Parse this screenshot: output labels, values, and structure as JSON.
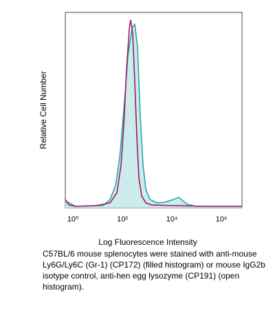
{
  "chart_data": {
    "type": "line",
    "xscale": "log",
    "x_label": "Log Fluorescence Intensity",
    "y_label": "Relative Cell Number",
    "xlim": [
      0.49,
      6810000
    ],
    "ylim": [
      0,
      100
    ],
    "xticks": [
      {
        "value": 1,
        "label": "10⁰"
      },
      {
        "value": 100,
        "label": "10²"
      },
      {
        "value": 10000,
        "label": "10⁴"
      },
      {
        "value": 1000000,
        "label": "10⁶"
      }
    ],
    "series": [
      {
        "color": "#22a7a9",
        "fill": "#cbeced",
        "x": [
          0.49,
          1.29,
          16.7,
          31.6,
          52.7,
          77,
          114,
          167,
          245,
          316,
          408,
          528,
          681,
          880,
          1292,
          2448,
          5275,
          11370,
          18960,
          27830,
          40840,
          93800,
          6810000
        ],
        "values": [
          3.5,
          0.7,
          1.1,
          4.2,
          11.3,
          25.4,
          50,
          78,
          92,
          94,
          82,
          46,
          21.8,
          9.5,
          4.2,
          2.5,
          2.8,
          4.2,
          5.3,
          3.5,
          1.8,
          0.7,
          0.7
        ]
      },
      {
        "color": "#a3165f",
        "x": [
          0.49,
          0.68,
          1.29,
          8.8,
          31.6,
          60,
          88,
          114,
          147,
          190,
          215,
          261,
          316,
          383,
          464,
          600,
          880,
          1468,
          10000,
          244900,
          6810000
        ],
        "values": [
          4.2,
          1.4,
          0.7,
          1.1,
          2.5,
          7.7,
          21.8,
          43,
          71,
          92,
          96,
          89,
          64,
          36,
          15,
          6,
          2.5,
          1.4,
          1.1,
          0.7,
          0.7
        ]
      }
    ]
  },
  "caption": [
    "C57BL/6 mouse splenocytes were stained with anti-mouse",
    "Ly6G/Ly6C (Gr-1) (CP172) (filled histogram) or mouse IgG2b",
    "isotype control, anti-hen egg lysozyme (CP191) (open",
    "histogram)."
  ]
}
